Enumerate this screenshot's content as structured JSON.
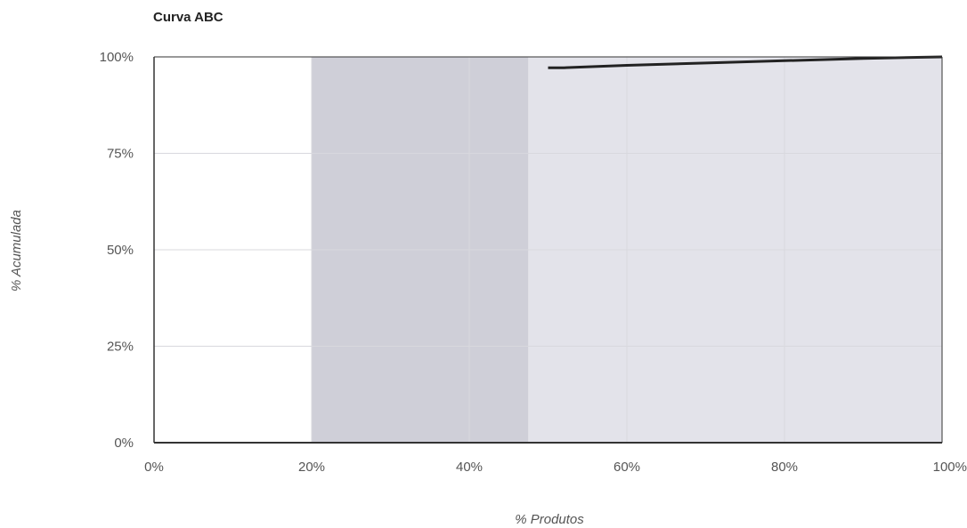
{
  "chart_data": {
    "type": "line",
    "title": "Curva ABC",
    "xlabel": "% Produtos",
    "ylabel": "% Acumulada",
    "xlim": [
      0,
      100
    ],
    "ylim": [
      0,
      100
    ],
    "x_ticks": [
      "0%",
      "20%",
      "40%",
      "60%",
      "80%",
      "100%"
    ],
    "y_ticks": [
      "0%",
      "25%",
      "50%",
      "75%",
      "100%"
    ],
    "grid": true,
    "legend": "none",
    "bands": [
      {
        "x_start": 20,
        "x_end": 47.5,
        "color": "#cfcfd8"
      },
      {
        "x_start": 47.5,
        "x_end": 100,
        "color": "#e3e3ea"
      }
    ],
    "series": [
      {
        "color": "#222222",
        "x": [
          50,
          52,
          60,
          70,
          80,
          90,
          100
        ],
        "y": [
          97.2,
          97.2,
          97.8,
          98.4,
          99.0,
          99.6,
          100
        ]
      }
    ]
  }
}
